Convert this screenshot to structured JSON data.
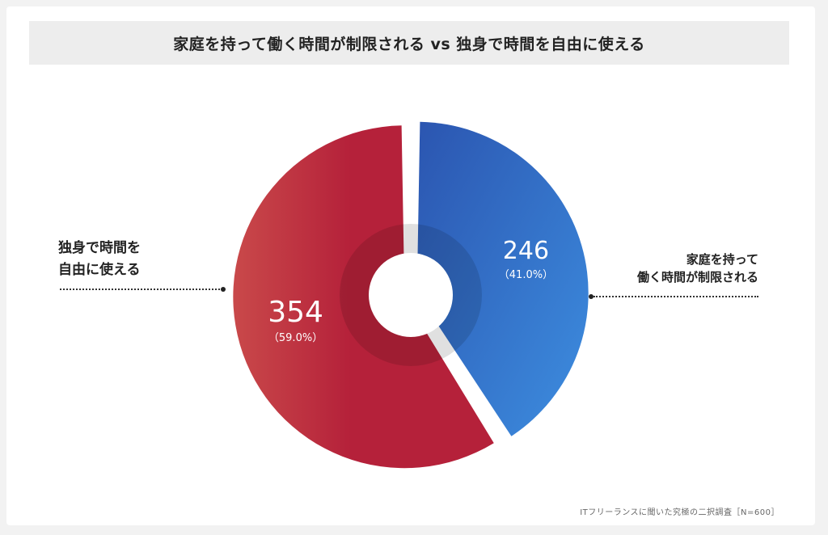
{
  "title": "家庭を持って働く時間が制限される vs 独身で時間を自由に使える",
  "source": "ITフリーランスに聞いた究極の二択調査［N=600］",
  "left_label": [
    "独身で時間を",
    "自由に使える"
  ],
  "right_label": [
    "家庭を持って",
    "働く時間が制限される"
  ],
  "colors": {
    "red_dark": "#b5213a",
    "red_light": "#c9494a",
    "blue_dark": "#2b55b0",
    "blue_light": "#3d8ee0"
  },
  "chart_data": {
    "type": "pie",
    "title": "家庭を持って働く時間が制限される vs 独身で時間を自由に使える",
    "slices": [
      {
        "label": "家庭を持って働く時間が制限される",
        "value": 246,
        "percent_label": "（41.0%）",
        "value_label": "246"
      },
      {
        "label": "独身で時間を自由に使える",
        "value": 354,
        "percent_label": "（59.0%）",
        "value_label": "354"
      }
    ],
    "total": 600
  }
}
